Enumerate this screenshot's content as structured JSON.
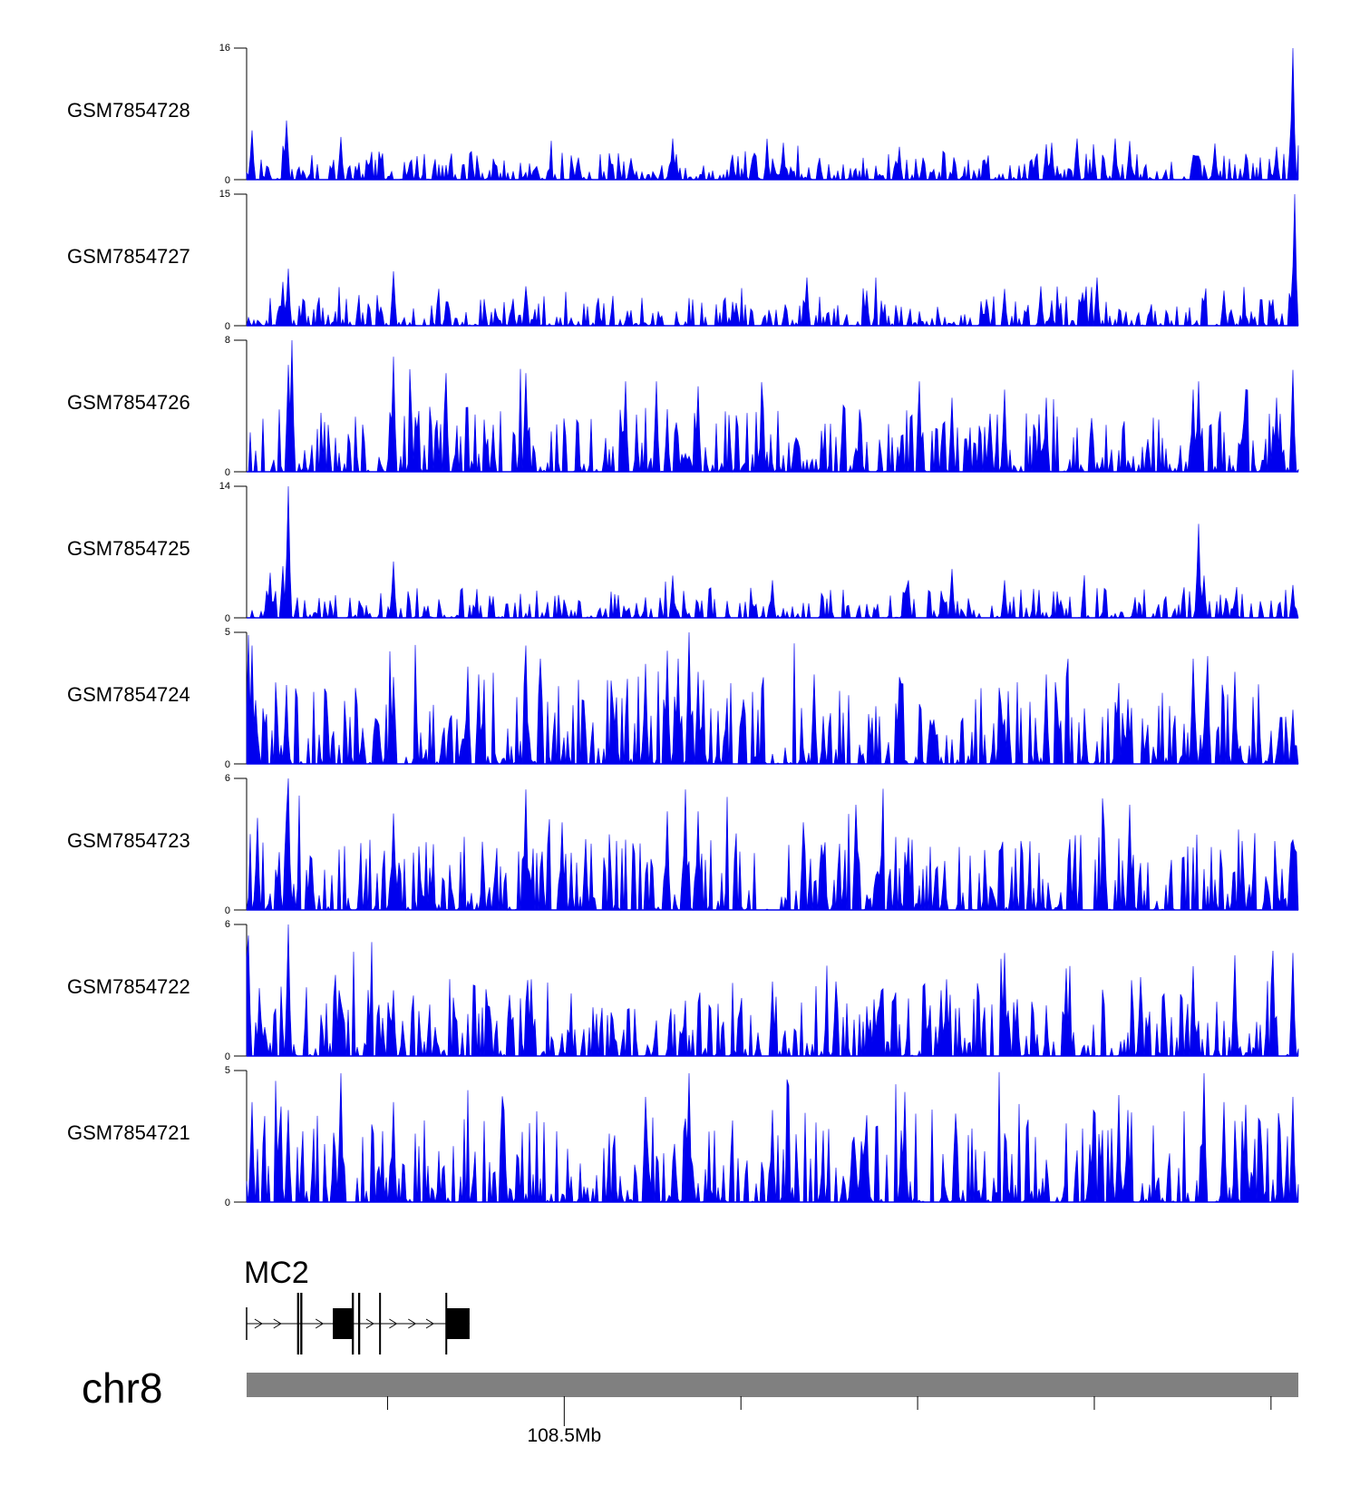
{
  "chart_data": {
    "type": "area",
    "title": "",
    "chromosome": "chr8",
    "position_label": "108.5Mb",
    "colors": {
      "signal": "#0000ee",
      "ideogram": "#808080",
      "gene": "#000000"
    },
    "tracks": [
      {
        "name": "GSM7854728",
        "ymax_label": "16",
        "ymin_label": "0",
        "ymax": 16,
        "noise": 1.6,
        "seed": 28,
        "peaks": [
          [
            0.005,
            6.0
          ],
          [
            0.038,
            7.2
          ],
          [
            0.09,
            5.2
          ],
          [
            0.405,
            5.0
          ],
          [
            0.51,
            4.5
          ],
          [
            0.62,
            4.0
          ],
          [
            0.76,
            4.3
          ],
          [
            0.765,
            4.5
          ],
          [
            0.79,
            5.0
          ],
          [
            0.826,
            5.0
          ],
          [
            0.84,
            4.7
          ],
          [
            0.92,
            4.4
          ],
          [
            0.98,
            4.0
          ],
          [
            0.995,
            16.0
          ]
        ]
      },
      {
        "name": "GSM7854727",
        "ymax_label": "15",
        "ymin_label": "0",
        "ymax": 15,
        "noise": 1.6,
        "seed": 27,
        "peaks": [
          [
            0.035,
            5.0
          ],
          [
            0.04,
            6.5
          ],
          [
            0.139,
            6.2
          ],
          [
            0.266,
            4.5
          ],
          [
            0.532,
            5.5
          ],
          [
            0.59,
            4.0
          ],
          [
            0.72,
            4.2
          ],
          [
            0.755,
            4.5
          ],
          [
            0.808,
            5.5
          ],
          [
            0.93,
            4.0
          ],
          [
            0.996,
            15.0
          ]
        ]
      },
      {
        "name": "GSM7854726",
        "ymax_label": "8",
        "ymin_label": "0",
        "ymax": 8,
        "noise": 1.8,
        "seed": 26,
        "peaks": [
          [
            0.043,
            8.0
          ],
          [
            0.04,
            6.5
          ],
          [
            0.14,
            7.0
          ],
          [
            0.19,
            6.0
          ],
          [
            0.265,
            6.0
          ],
          [
            0.36,
            5.5
          ],
          [
            0.39,
            5.5
          ],
          [
            0.43,
            5.2
          ],
          [
            0.64,
            5.5
          ],
          [
            0.67,
            4.5
          ],
          [
            0.72,
            5.0
          ],
          [
            0.76,
            4.5
          ],
          [
            0.9,
            5.0
          ],
          [
            0.905,
            5.5
          ],
          [
            0.95,
            5.0
          ],
          [
            0.98,
            4.5
          ],
          [
            0.995,
            6.2
          ]
        ]
      },
      {
        "name": "GSM7854725",
        "ymax_label": "14",
        "ymin_label": "0",
        "ymax": 14,
        "noise": 1.5,
        "seed": 25,
        "peaks": [
          [
            0.022,
            4.8
          ],
          [
            0.04,
            14.0
          ],
          [
            0.035,
            5.5
          ],
          [
            0.139,
            6.0
          ],
          [
            0.405,
            4.5
          ],
          [
            0.5,
            4.0
          ],
          [
            0.63,
            4.0
          ],
          [
            0.67,
            5.2
          ],
          [
            0.72,
            4.0
          ],
          [
            0.905,
            10.0
          ],
          [
            0.91,
            4.5
          ],
          [
            0.995,
            3.5
          ]
        ]
      },
      {
        "name": "GSM7854724",
        "ymax_label": "5",
        "ymin_label": "0",
        "ymax": 5,
        "noise": 1.5,
        "seed": 24,
        "peaks": [
          [
            0.002,
            4.9
          ],
          [
            0.006,
            4.5
          ],
          [
            0.038,
            3.0
          ],
          [
            0.139,
            3.3
          ],
          [
            0.21,
            3.7
          ],
          [
            0.22,
            3.4
          ],
          [
            0.265,
            4.5
          ],
          [
            0.28,
            4.0
          ],
          [
            0.38,
            3.8
          ],
          [
            0.4,
            4.3
          ],
          [
            0.41,
            4.0
          ],
          [
            0.421,
            5.0
          ],
          [
            0.43,
            3.5
          ],
          [
            0.54,
            3.4
          ],
          [
            0.62,
            3.3
          ],
          [
            0.76,
            3.4
          ],
          [
            0.9,
            4.0
          ],
          [
            0.913,
            4.1
          ],
          [
            0.94,
            3.5
          ],
          [
            0.995,
            2.0
          ]
        ]
      },
      {
        "name": "GSM7854723",
        "ymax_label": "6",
        "ymin_label": "0",
        "ymax": 6,
        "noise": 1.6,
        "seed": 23,
        "peaks": [
          [
            0.038,
            4.5
          ],
          [
            0.04,
            6.0
          ],
          [
            0.01,
            4.2
          ],
          [
            0.139,
            4.4
          ],
          [
            0.265,
            5.5
          ],
          [
            0.3,
            4.0
          ],
          [
            0.4,
            4.5
          ],
          [
            0.418,
            5.5
          ],
          [
            0.43,
            4.5
          ],
          [
            0.53,
            4.0
          ],
          [
            0.58,
            4.8
          ],
          [
            0.84,
            4.8
          ],
          [
            0.995,
            3.2
          ]
        ]
      },
      {
        "name": "GSM7854722",
        "ymax_label": "6",
        "ymin_label": "0",
        "ymax": 6,
        "noise": 1.6,
        "seed": 22,
        "peaks": [
          [
            0.002,
            5.5
          ],
          [
            0.04,
            6.0
          ],
          [
            0.085,
            3.7
          ],
          [
            0.139,
            3.0
          ],
          [
            0.27,
            3.5
          ],
          [
            0.5,
            3.4
          ],
          [
            0.56,
            3.4
          ],
          [
            0.645,
            3.3
          ],
          [
            0.665,
            3.5
          ],
          [
            0.66,
            3.0
          ],
          [
            0.72,
            4.7
          ],
          [
            0.78,
            4.0
          ],
          [
            0.85,
            3.6
          ],
          [
            0.9,
            4.1
          ],
          [
            0.94,
            4.6
          ],
          [
            0.975,
            4.8
          ],
          [
            0.995,
            4.7
          ]
        ]
      },
      {
        "name": "GSM7854721",
        "ymax_label": "5",
        "ymin_label": "0",
        "ymax": 5,
        "noise": 1.6,
        "seed": 21,
        "peaks": [
          [
            0.006,
            3.8
          ],
          [
            0.04,
            3.5
          ],
          [
            0.089,
            4.9
          ],
          [
            0.139,
            3.8
          ],
          [
            0.245,
            3.5
          ],
          [
            0.38,
            4.0
          ],
          [
            0.42,
            4.9
          ],
          [
            0.5,
            3.5
          ],
          [
            0.59,
            3.3
          ],
          [
            0.625,
            3.7
          ],
          [
            0.83,
            3.4
          ],
          [
            0.838,
            3.5
          ],
          [
            0.91,
            4.9
          ],
          [
            0.93,
            3.8
          ],
          [
            0.95,
            3.7
          ],
          [
            0.995,
            4.0
          ]
        ]
      }
    ],
    "gene_track": {
      "name": "MC2",
      "strand": "+",
      "exons": [
        {
          "start": 0.048,
          "end": 0.05,
          "type": "thin"
        },
        {
          "start": 0.051,
          "end": 0.053,
          "type": "thin"
        },
        {
          "start": 0.082,
          "end": 0.1,
          "type": "thick"
        },
        {
          "start": 0.1,
          "end": 0.102,
          "type": "thin"
        },
        {
          "start": 0.106,
          "end": 0.108,
          "type": "thin"
        },
        {
          "start": 0.126,
          "end": 0.127,
          "type": "thin"
        },
        {
          "start": 0.189,
          "end": 0.19,
          "type": "thin"
        },
        {
          "start": 0.19,
          "end": 0.212,
          "type": "thick"
        }
      ]
    },
    "axis": {
      "ticks": [
        0.134,
        0.302,
        0.47,
        0.638,
        0.806,
        0.974
      ],
      "labeled_tick": 0.302
    }
  }
}
